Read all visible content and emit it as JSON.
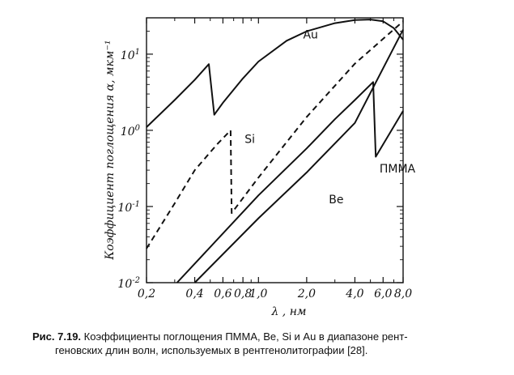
{
  "chart_data": {
    "type": "line",
    "title": "",
    "xlabel": "λ , нм",
    "ylabel": "Коэффициент поглощения α, мкм⁻¹",
    "x_scale": "log",
    "y_scale": "log",
    "xlim": [
      0.2,
      8.0
    ],
    "ylim": [
      0.01,
      30
    ],
    "x_ticks": [
      0.2,
      0.4,
      0.6,
      0.8,
      1.0,
      2.0,
      4.0,
      6.0,
      8.0
    ],
    "x_tick_labels": [
      "0,2",
      "0,4",
      "0,6",
      "0,8",
      "1,0",
      "2,0",
      "4,0",
      "6,0",
      "8,0"
    ],
    "x_minor_ticks": [
      0.3,
      0.5,
      0.7,
      0.9,
      3.0,
      5.0,
      7.0
    ],
    "y_ticks": [
      0.01,
      0.1,
      1,
      10
    ],
    "y_tick_base": [
      "10",
      "10",
      "10",
      "10"
    ],
    "y_tick_exp": [
      "-2",
      "-1",
      "0",
      "1"
    ],
    "grid": false,
    "series": [
      {
        "name": "Au",
        "dash": "solid",
        "points": [
          [
            0.2,
            1.1
          ],
          [
            0.3,
            2.5
          ],
          [
            0.4,
            4.6
          ],
          [
            0.49,
            7.4
          ],
          [
            0.53,
            1.6
          ],
          [
            0.6,
            2.3
          ],
          [
            0.8,
            4.8
          ],
          [
            1.0,
            8.0
          ],
          [
            1.5,
            15.0
          ],
          [
            2.0,
            20.0
          ],
          [
            3.0,
            25.5
          ],
          [
            4.0,
            28.0
          ],
          [
            5.0,
            28.5
          ],
          [
            6.0,
            27.0
          ],
          [
            7.0,
            22.0
          ],
          [
            8.0,
            15.5
          ]
        ]
      },
      {
        "name": "Si",
        "dash": "dashed",
        "points": [
          [
            0.2,
            0.028
          ],
          [
            0.3,
            0.11
          ],
          [
            0.4,
            0.3
          ],
          [
            0.55,
            0.65
          ],
          [
            0.67,
            1.0
          ],
          [
            0.68,
            0.082
          ],
          [
            1.0,
            0.24
          ],
          [
            2.0,
            1.5
          ],
          [
            4.0,
            7.5
          ],
          [
            8.0,
            27.0
          ]
        ]
      },
      {
        "name": "Be",
        "dash": "solid",
        "points": [
          [
            0.31,
            0.01
          ],
          [
            1.0,
            0.14
          ],
          [
            2.0,
            0.58
          ],
          [
            3.0,
            1.4
          ],
          [
            4.0,
            2.5
          ],
          [
            5.2,
            4.3
          ],
          [
            5.4,
            0.45
          ],
          [
            8.0,
            1.8
          ]
        ]
      },
      {
        "name": "ПММА",
        "dash": "solid",
        "points": [
          [
            0.4,
            0.01
          ],
          [
            1.0,
            0.07
          ],
          [
            2.0,
            0.28
          ],
          [
            4.0,
            1.25
          ],
          [
            8.0,
            21.0
          ]
        ]
      }
    ],
    "annotations": [
      {
        "text": "Au",
        "x": 1.9,
        "y": 16.0
      },
      {
        "text": "Si",
        "x": 0.82,
        "y": 0.68
      },
      {
        "text": "Be",
        "x": 2.75,
        "y": 0.11
      },
      {
        "text": "ПММА",
        "x": 5.7,
        "y": 0.28
      }
    ]
  },
  "caption": {
    "lead": "Рис. 7.19.",
    "line1": "Коэффициенты поглощения ПММА, Be, Si и Au в диапазоне рент-",
    "line2": "геновских длин волн, используемых в рентгенолитографии [28]."
  }
}
